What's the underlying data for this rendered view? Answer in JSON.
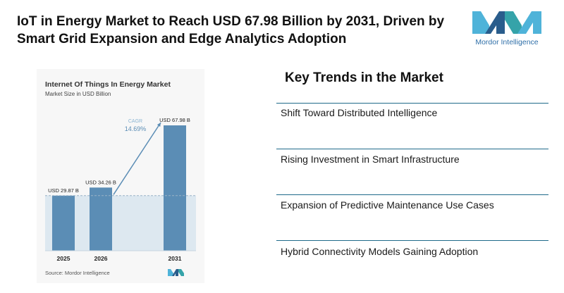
{
  "headline": "IoT in Energy Market to Reach USD 67.98 Billion by 2031, Driven by Smart Grid Expansion and Edge Analytics Adoption",
  "logo": {
    "text": "Mordor Intelligence",
    "icon": "mordor-intelligence-logo-icon",
    "colors": [
      "#4fb3d9",
      "#2a5d8c",
      "#35a3a9"
    ]
  },
  "trends": {
    "title": "Key Trends in the Market",
    "items": [
      "Shift Toward Distributed Intelligence",
      "Rising Investment in Smart Infrastructure",
      "Expansion of Predictive Maintenance Use Cases",
      "Hybrid Connectivity Models Gaining Adoption"
    ]
  },
  "colors": {
    "bar": "#5b8db5",
    "arrow": "#5b8db5",
    "band": "#dde8f0",
    "rule": "#1f6a8a",
    "cagr": "#5b8db5"
  },
  "chart_data": {
    "type": "bar",
    "title": "Internet Of Things In Energy Market",
    "subtitle": "Market Size in USD Billion",
    "categories": [
      "2025",
      "2026",
      "2031"
    ],
    "values": [
      29.87,
      34.26,
      67.98
    ],
    "value_labels": [
      "USD 29.87 B",
      "USD 34.26 B",
      "USD 67.98 B"
    ],
    "cagr_label": "CAGR",
    "cagr_value": "14.69%",
    "source": "Source: Mordor Intelligence",
    "ylim": [
      0,
      67.98
    ],
    "xlabel": "",
    "ylabel": ""
  }
}
